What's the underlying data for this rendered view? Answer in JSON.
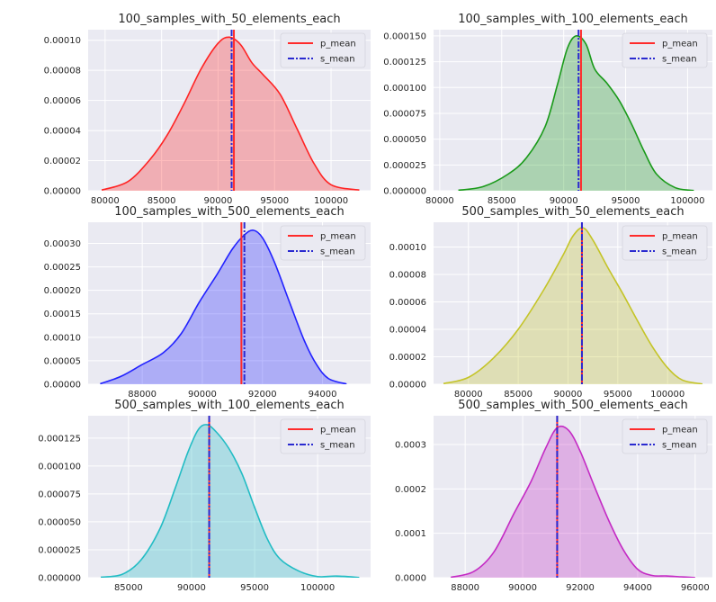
{
  "legend_labels": {
    "p_mean": "p_mean",
    "s_mean": "s_mean"
  },
  "colors": {
    "panel_bg": "#eaeaf2",
    "grid": "#ffffff",
    "p_mean": "#ff2b2b",
    "s_mean": "#2a2ad0"
  },
  "chart_data": [
    {
      "type": "area",
      "title": "100_samples_with_50_elements_each",
      "color": "#ff2323",
      "xlim": [
        78500,
        103500
      ],
      "ylim": [
        0,
        0.000107
      ],
      "xticks": [
        80000,
        85000,
        90000,
        95000,
        100000
      ],
      "xtick_labels": [
        "80000",
        "85000",
        "90000",
        "95000",
        "100000"
      ],
      "yticks": [
        0,
        2e-05,
        4e-05,
        6e-05,
        8e-05,
        0.0001
      ],
      "ytick_labels": [
        "0.00000",
        "0.00002",
        "0.00004",
        "0.00006",
        "0.00008",
        "0.00010"
      ],
      "p_mean": 91400,
      "s_mean": 91200,
      "x": [
        79700,
        82000,
        84000,
        85500,
        87000,
        88500,
        90000,
        91000,
        92000,
        93000,
        94000,
        95500,
        97000,
        98500,
        100000,
        102500
      ],
      "y": [
        5e-07,
        6e-06,
        2.1e-05,
        3.7e-05,
        5.8e-05,
        8.1e-05,
        9.8e-05,
        0.000102,
        9.7e-05,
        8.5e-05,
        7.7e-05,
        6.4e-05,
        4.1e-05,
        1.8e-05,
        4e-06,
        5e-07
      ]
    },
    {
      "type": "area",
      "title": "100_samples_with_100_elements_each",
      "color": "#1a9a1a",
      "xlim": [
        79500,
        102000
      ],
      "ylim": [
        0,
        0.000156
      ],
      "xticks": [
        80000,
        85000,
        90000,
        95000,
        100000
      ],
      "xtick_labels": [
        "80000",
        "85000",
        "90000",
        "95000",
        "100000"
      ],
      "yticks": [
        0,
        2.5e-05,
        5e-05,
        7.5e-05,
        0.0001,
        0.000125,
        0.00015
      ],
      "ytick_labels": [
        "0.000000",
        "0.000025",
        "0.000050",
        "0.000075",
        "0.000100",
        "0.000125",
        "0.000150"
      ],
      "p_mean": 91400,
      "s_mean": 91200,
      "x": [
        81500,
        83500,
        85500,
        87000,
        88500,
        89500,
        90300,
        91000,
        91800,
        92500,
        93500,
        94500,
        95500,
        96500,
        97500,
        99000,
        100500
      ],
      "y": [
        5e-07,
        4e-06,
        1.6e-05,
        3.2e-05,
        6.2e-05,
        0.000103,
        0.000138,
        0.00015,
        0.000142,
        0.000118,
        0.000104,
        8.7e-05,
        6.4e-05,
        3.8e-05,
        1.6e-05,
        3e-06,
        3e-07
      ]
    },
    {
      "type": "area",
      "title": "100_samples_with_500_elements_each",
      "color": "#2222ff",
      "xlim": [
        86200,
        95600
      ],
      "ylim": [
        0,
        0.000345
      ],
      "xticks": [
        88000,
        90000,
        92000,
        94000
      ],
      "xtick_labels": [
        "88000",
        "90000",
        "92000",
        "94000"
      ],
      "yticks": [
        0,
        5e-05,
        0.0001,
        0.00015,
        0.0002,
        0.00025,
        0.0003
      ],
      "ytick_labels": [
        "0.00000",
        "0.00005",
        "0.00010",
        "0.00015",
        "0.00020",
        "0.00025",
        "0.00030"
      ],
      "p_mean": 91300,
      "s_mean": 91400,
      "x": [
        86600,
        87300,
        88000,
        88700,
        89300,
        89900,
        90500,
        91000,
        91400,
        91700,
        92000,
        92400,
        92900,
        93400,
        93800,
        94200,
        94800
      ],
      "y": [
        1e-06,
        1.7e-05,
        4.2e-05,
        6.7e-05,
        0.000108,
        0.000175,
        0.000235,
        0.000288,
        0.000318,
        0.000328,
        0.000312,
        0.00026,
        0.000175,
        9.2e-05,
        4.2e-05,
        1.2e-05,
        5e-07
      ]
    },
    {
      "type": "area",
      "title": "500_samples_with_50_elements_each",
      "color": "#c4c428",
      "xlim": [
        76500,
        104500
      ],
      "ylim": [
        0,
        0.000118
      ],
      "xticks": [
        80000,
        85000,
        90000,
        95000,
        100000
      ],
      "xtick_labels": [
        "80000",
        "85000",
        "90000",
        "95000",
        "100000"
      ],
      "yticks": [
        0,
        2e-05,
        4e-05,
        6e-05,
        8e-05,
        0.0001
      ],
      "ytick_labels": [
        "0.00000",
        "0.00002",
        "0.00004",
        "0.00006",
        "0.00008",
        "0.00010"
      ],
      "p_mean": 91400,
      "s_mean": 91400,
      "x": [
        77500,
        80000,
        82500,
        85000,
        87500,
        89500,
        90500,
        91500,
        92500,
        94000,
        95500,
        97000,
        98500,
        100000,
        101500,
        103500
      ],
      "y": [
        5e-07,
        5e-06,
        1.9e-05,
        4e-05,
        6.8e-05,
        9.4e-05,
        0.000108,
        0.000114,
        0.000105,
        8.5e-05,
        6.6e-05,
        4.6e-05,
        2.7e-05,
        1.2e-05,
        3e-06,
        2e-07
      ]
    },
    {
      "type": "area",
      "title": "500_samples_with_100_elements_each",
      "color": "#22bcc4",
      "xlim": [
        81800,
        104200
      ],
      "ylim": [
        0,
        0.000145
      ],
      "xticks": [
        85000,
        90000,
        95000,
        100000
      ],
      "xtick_labels": [
        "85000",
        "90000",
        "95000",
        "100000"
      ],
      "yticks": [
        0,
        2.5e-05,
        5e-05,
        7.5e-05,
        0.0001,
        0.000125
      ],
      "ytick_labels": [
        "0.000000",
        "0.000025",
        "0.000050",
        "0.000075",
        "0.000100",
        "0.000125"
      ],
      "p_mean": 91400,
      "s_mean": 91400,
      "x": [
        82800,
        84500,
        86000,
        87500,
        88700,
        89700,
        90500,
        91200,
        92000,
        93000,
        94000,
        95000,
        96000,
        97000,
        98500,
        100000,
        101500,
        103300
      ],
      "y": [
        5e-07,
        3e-06,
        1.6e-05,
        4.4e-05,
        8e-05,
        0.000112,
        0.000132,
        0.000137,
        0.00013,
        0.000115,
        9.3e-05,
        6.3e-05,
        3.5e-05,
        1.7e-05,
        6e-06,
        1e-06,
        1.5e-06,
        2e-07
      ]
    },
    {
      "type": "area",
      "title": "500_samples_with_500_elements_each",
      "color": "#c42bc4",
      "xlim": [
        86900,
        96600
      ],
      "ylim": [
        0,
        0.000365
      ],
      "xticks": [
        88000,
        90000,
        92000,
        94000,
        96000
      ],
      "xtick_labels": [
        "88000",
        "90000",
        "92000",
        "94000",
        "96000"
      ],
      "yticks": [
        0,
        0.0001,
        0.0002,
        0.0003
      ],
      "ytick_labels": [
        "0.0000",
        "0.0001",
        "0.0002",
        "0.0003"
      ],
      "p_mean": 91200,
      "s_mean": 91200,
      "x": [
        87500,
        88300,
        89000,
        89700,
        90300,
        90800,
        91200,
        91600,
        92000,
        92500,
        93000,
        93500,
        94000,
        94500,
        95000,
        95500,
        96000
      ],
      "y": [
        1e-06,
        1.4e-05,
        5.8e-05,
        0.000145,
        0.000218,
        0.000292,
        0.000338,
        0.000332,
        0.000285,
        0.000205,
        0.000128,
        6.3e-05,
        1.9e-05,
        5e-06,
        4e-06,
        2e-06,
        2e-07
      ]
    }
  ]
}
